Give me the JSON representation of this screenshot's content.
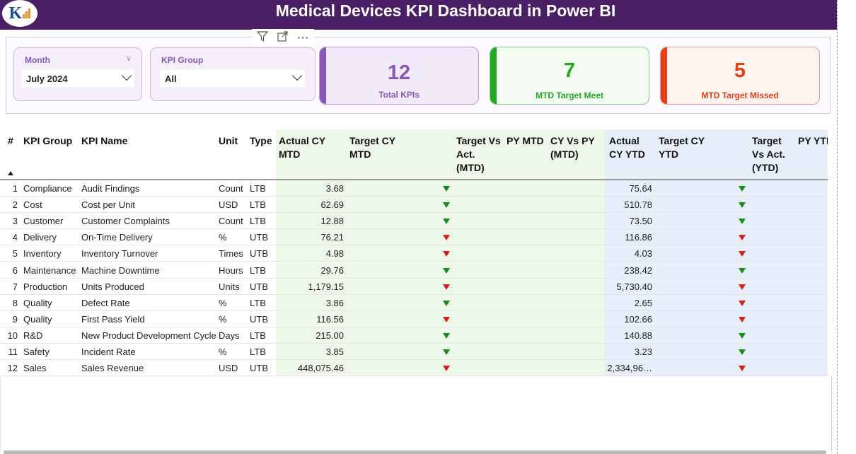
{
  "header": {
    "title": "Medical Devices KPI Dashboard in Power BI",
    "logo_icon": "kpi-logo-icon"
  },
  "toolbar": {
    "filter_icon": "filter-icon",
    "focus_icon": "focus-mode-icon",
    "more_label": "···"
  },
  "slicers": {
    "month": {
      "label": "Month",
      "value": "July 2024"
    },
    "kpi_group": {
      "label": "KPI Group",
      "value": "All"
    }
  },
  "cards": [
    {
      "value": "12",
      "label": "Total KPIs",
      "color": "#8a58b4",
      "accent": "#8a58b4",
      "bg": "#f1eaf8",
      "border": "#b99bd6"
    },
    {
      "value": "7",
      "label": "MTD Target Meet",
      "color": "#22a822",
      "accent": "#22a822",
      "bg": "#f4fbf2",
      "border": "#7fcf7f"
    },
    {
      "value": "5",
      "label": "MTD Target Missed",
      "color": "#e0401a",
      "accent": "#e0401a",
      "bg": "#fdf3ef",
      "border": "#ee9a86"
    }
  ],
  "table": {
    "headers": {
      "num": "#",
      "group": "KPI Group",
      "name": "KPI Name",
      "unit": "Unit",
      "type": "Type",
      "actual_mtd": "Actual CY MTD",
      "target_mtd": "Target CY MTD",
      "tva_mtd": "Target Vs Act. (MTD)",
      "py_mtd": "PY MTD",
      "cvp_mtd": "CY Vs PY (MTD)",
      "actual_ytd": "Actual CY YTD",
      "target_ytd": "Target CY YTD",
      "tva_ytd": "Target Vs Act. (YTD)",
      "py_ytd": "PY YTI"
    },
    "rows": [
      {
        "n": "1",
        "group": "Compliance",
        "name": "Audit Findings",
        "unit": "Count",
        "type": "LTB",
        "actual_mtd": "3.68",
        "mtd_status": "green",
        "actual_ytd": "75.64",
        "ytd_status": "green"
      },
      {
        "n": "2",
        "group": "Cost",
        "name": "Cost per Unit",
        "unit": "USD",
        "type": "LTB",
        "actual_mtd": "62.69",
        "mtd_status": "green",
        "actual_ytd": "510.78",
        "ytd_status": "green"
      },
      {
        "n": "3",
        "group": "Customer",
        "name": "Customer Complaints",
        "unit": "Count",
        "type": "LTB",
        "actual_mtd": "12.88",
        "mtd_status": "green",
        "actual_ytd": "73.50",
        "ytd_status": "green"
      },
      {
        "n": "4",
        "group": "Delivery",
        "name": "On-Time Delivery",
        "unit": "%",
        "type": "UTB",
        "actual_mtd": "76.21",
        "mtd_status": "red",
        "actual_ytd": "116.86",
        "ytd_status": "red"
      },
      {
        "n": "5",
        "group": "Inventory",
        "name": "Inventory Turnover",
        "unit": "Times",
        "type": "UTB",
        "actual_mtd": "4.98",
        "mtd_status": "red",
        "actual_ytd": "4.03",
        "ytd_status": "red"
      },
      {
        "n": "6",
        "group": "Maintenance",
        "name": "Machine Downtime",
        "unit": "Hours",
        "type": "LTB",
        "actual_mtd": "29.76",
        "mtd_status": "green",
        "actual_ytd": "238.42",
        "ytd_status": "green"
      },
      {
        "n": "7",
        "group": "Production",
        "name": "Units Produced",
        "unit": "Units",
        "type": "UTB",
        "actual_mtd": "1,179.15",
        "mtd_status": "red",
        "actual_ytd": "5,730.40",
        "ytd_status": "red"
      },
      {
        "n": "8",
        "group": "Quality",
        "name": "Defect Rate",
        "unit": "%",
        "type": "LTB",
        "actual_mtd": "3.86",
        "mtd_status": "green",
        "actual_ytd": "2.65",
        "ytd_status": "red"
      },
      {
        "n": "9",
        "group": "Quality",
        "name": "First Pass Yield",
        "unit": "%",
        "type": "UTB",
        "actual_mtd": "116.56",
        "mtd_status": "red",
        "actual_ytd": "102.66",
        "ytd_status": "red"
      },
      {
        "n": "10",
        "group": "R&D",
        "name": "New Product Development Cycle",
        "unit": "Days",
        "type": "LTB",
        "actual_mtd": "215.00",
        "mtd_status": "green",
        "actual_ytd": "140.88",
        "ytd_status": "green"
      },
      {
        "n": "11",
        "group": "Safety",
        "name": "Incident Rate",
        "unit": "%",
        "type": "LTB",
        "actual_mtd": "3.85",
        "mtd_status": "green",
        "actual_ytd": "3.23",
        "ytd_status": "green"
      },
      {
        "n": "12",
        "group": "Sales",
        "name": "Sales Revenue",
        "unit": "USD",
        "type": "UTB",
        "actual_mtd": "448,075.46",
        "mtd_status": "red",
        "actual_ytd": "2,334,96…",
        "ytd_status": "red"
      }
    ]
  }
}
